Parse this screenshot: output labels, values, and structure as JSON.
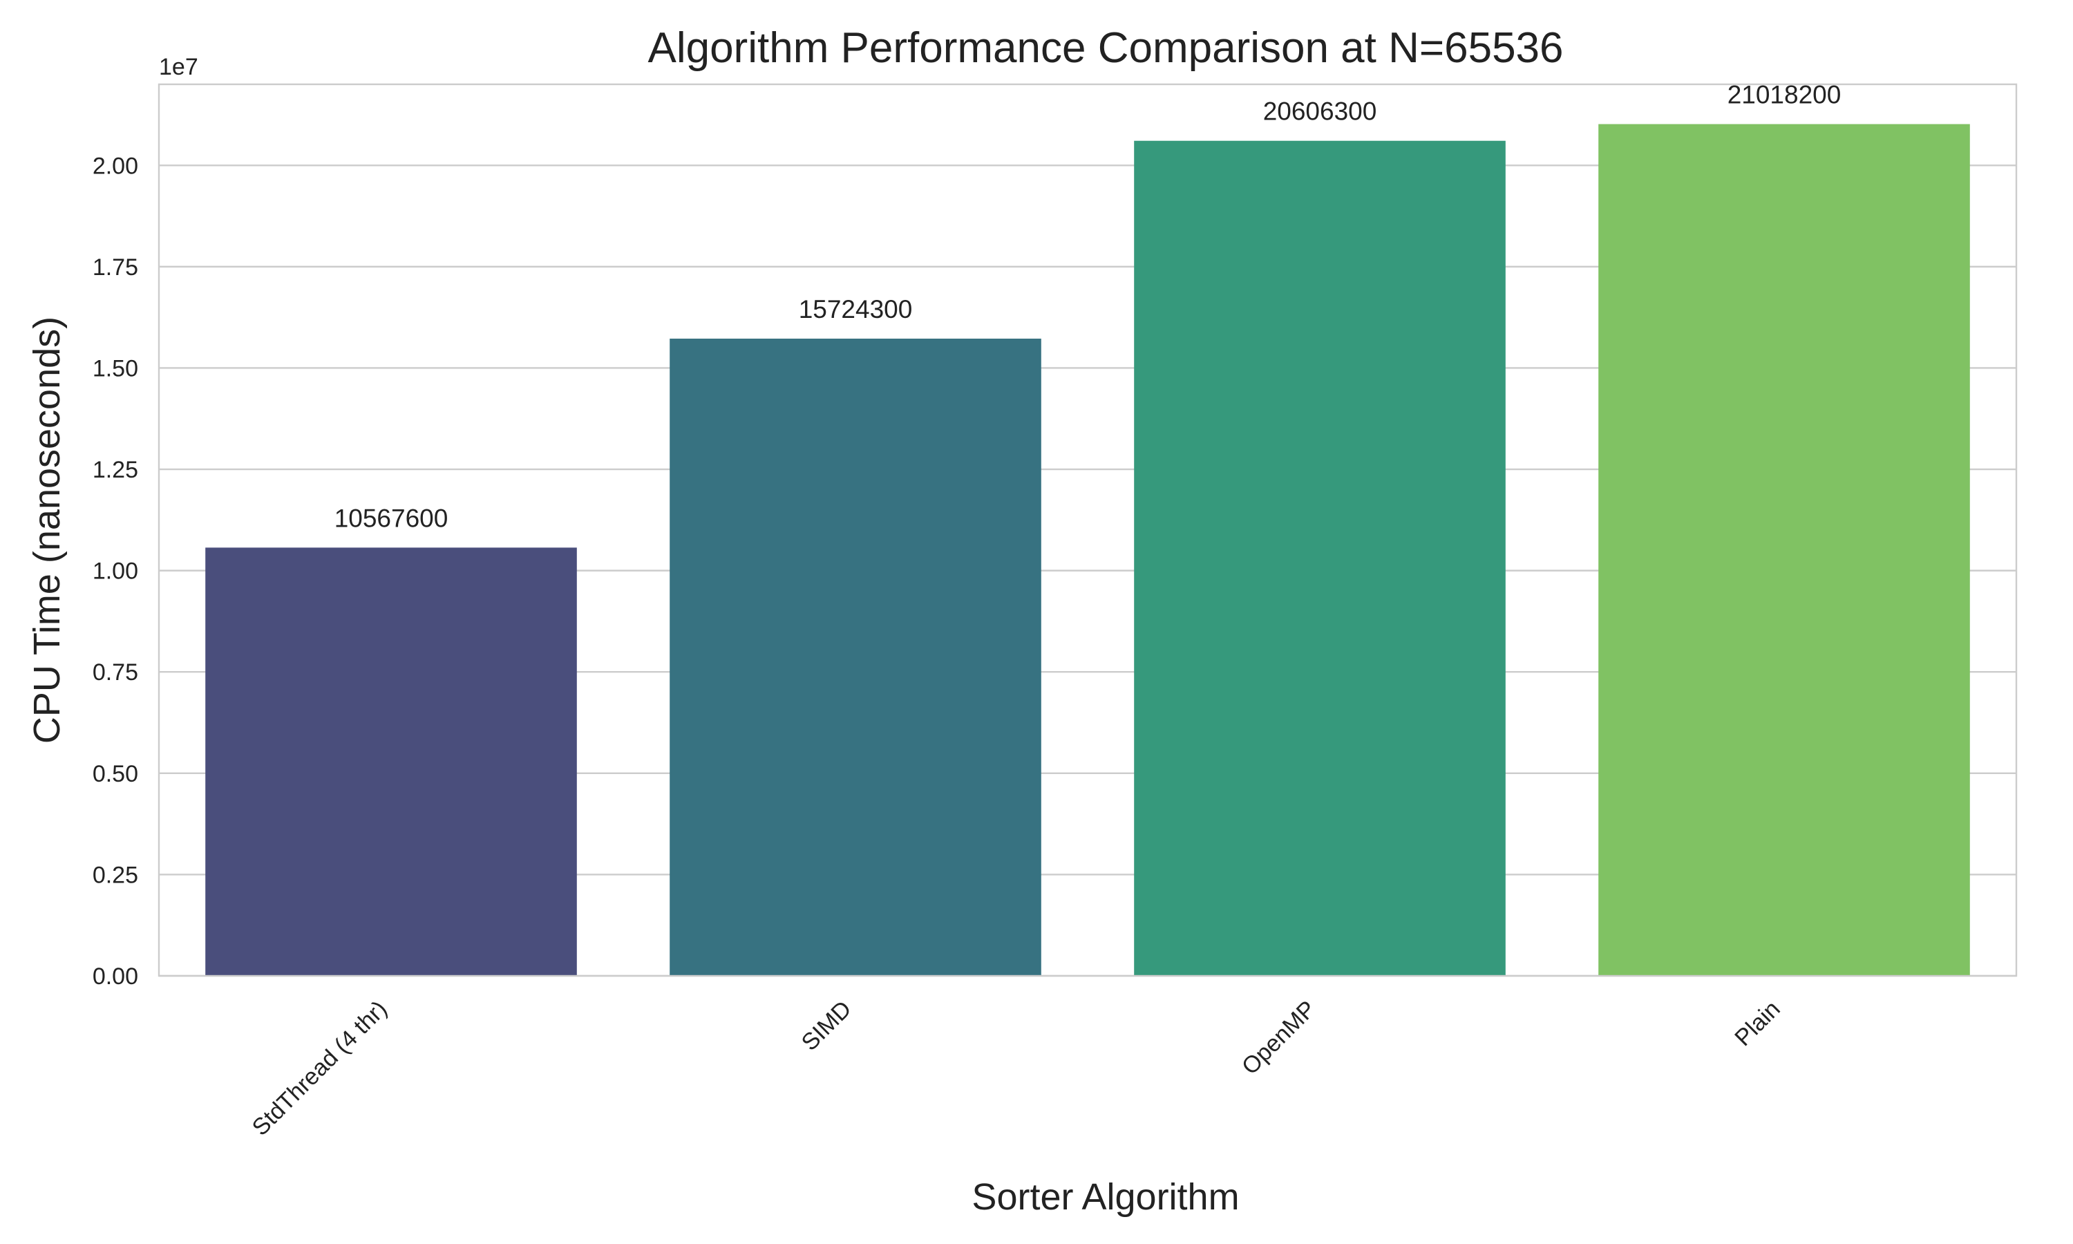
{
  "chart_data": {
    "type": "bar",
    "title": "Algorithm Performance Comparison at N=65536",
    "xlabel": "Sorter Algorithm",
    "ylabel": "CPU Time (nanoseconds)",
    "y_offset_label": "1e7",
    "categories": [
      "StdThread (4 thr)",
      "SIMD",
      "OpenMP",
      "Plain"
    ],
    "values": [
      10567600,
      15724300,
      20606300,
      21018200
    ],
    "data_labels": [
      "10567600",
      "15724300",
      "20606300",
      "21018200"
    ],
    "colors": [
      "#4a4e7c",
      "#377281",
      "#36997c",
      "#80c263"
    ],
    "ylim": [
      0,
      22000000
    ],
    "yticks": [
      0,
      2500000,
      5000000,
      7500000,
      10000000,
      12500000,
      15000000,
      17500000,
      20000000
    ],
    "ytick_labels": [
      "0.00",
      "0.25",
      "0.50",
      "0.75",
      "1.00",
      "1.25",
      "1.50",
      "1.75",
      "2.00"
    ],
    "grid": "horizontal",
    "legend": "none"
  }
}
